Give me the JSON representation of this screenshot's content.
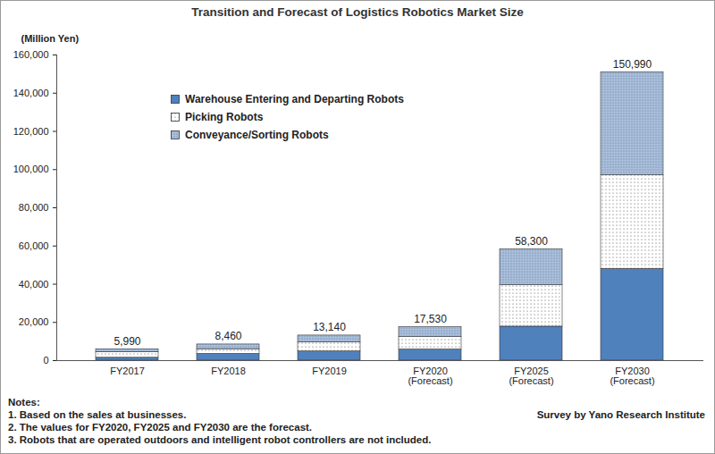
{
  "chart_data": {
    "type": "bar",
    "stacked": true,
    "title": "Transition and Forecast of Logistics Robotics Market Size",
    "y_label": "(Million Yen)",
    "categories": [
      "FY2017",
      "FY2018",
      "FY2019",
      "FY2020\n(Forecast)",
      "FY2025\n(Forecast)",
      "FY2030\n(Forecast)"
    ],
    "series": [
      {
        "name": "Warehouse Entering and Departing Robots",
        "color": "#4f81bd",
        "values": [
          1500,
          3500,
          4800,
          5800,
          17800,
          48000
        ]
      },
      {
        "name": "Picking Robots",
        "color": "#ffffff",
        "values": [
          3000,
          2500,
          4700,
          6500,
          21700,
          49000
        ]
      },
      {
        "name": "Conveyance/Sorting Robots",
        "color": "#a9bfdc",
        "values": [
          1490,
          2460,
          3640,
          5230,
          18800,
          53990
        ]
      }
    ],
    "totals": [
      5990,
      8460,
      13140,
      17530,
      58300,
      150990
    ],
    "total_labels": [
      "5,990",
      "8,460",
      "13,140",
      "17,530",
      "58,300",
      "150,990"
    ],
    "ylim": [
      0,
      160000
    ],
    "yticks": [
      0,
      {
        "value": 20000,
        "label": "20,000"
      },
      {
        "value": 40000,
        "label": "40,000"
      },
      {
        "value": 60000,
        "label": "60,000"
      },
      {
        "value": 80000,
        "label": "80,000"
      },
      {
        "value": 100000,
        "label": "100,000"
      },
      {
        "value": 120000,
        "label": "120,000"
      },
      {
        "value": 140000,
        "label": "140,000"
      },
      {
        "value": 160000,
        "label": "160,000"
      }
    ],
    "grid": false,
    "legend": "top-left",
    "notes": [
      "Notes:",
      "1. Based on the sales at businesses.",
      "2. The values for FY2020, FY2025 and FY2030 are the forecast.",
      "3. Robots that are operated outdoors and intelligent robot controllers are not included."
    ],
    "source": "Survey by Yano Research Institute"
  }
}
